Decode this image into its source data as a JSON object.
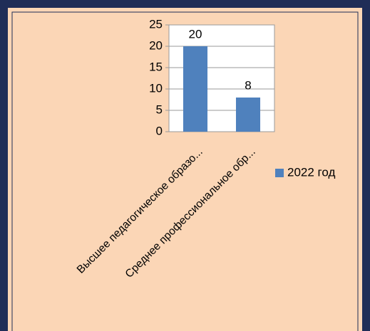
{
  "chart_data": {
    "type": "bar",
    "categories": [
      "Высшее педагогическое образо...",
      "Среднее профессиональное обр..."
    ],
    "series": [
      {
        "name": "2022 год",
        "color": "#4f81bd",
        "values": [
          20,
          8
        ]
      }
    ],
    "ylim": [
      0,
      25
    ],
    "yticks": [
      0,
      5,
      10,
      15,
      20,
      25
    ],
    "grid": true,
    "legend": "right"
  }
}
